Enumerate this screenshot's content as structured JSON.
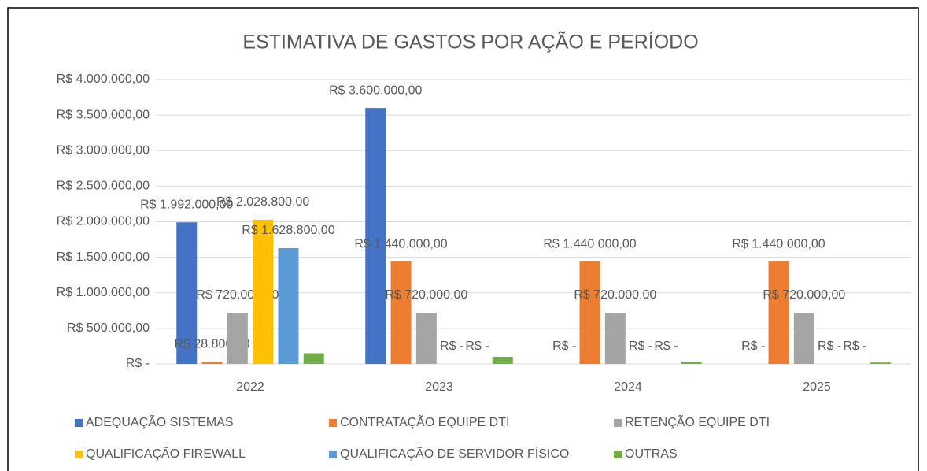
{
  "chart_data": {
    "type": "bar",
    "title": "ESTIMATIVA DE GASTOS POR AÇÃO E PERÍODO",
    "categories": [
      "2022",
      "2023",
      "2024",
      "2025"
    ],
    "series": [
      {
        "name": "ADEQUAÇÃO SISTEMAS",
        "color": "#4472c4",
        "values": [
          1992000,
          3600000,
          0,
          0
        ],
        "value_labels": [
          "R$ 1.992.000,00",
          "R$ 3.600.000,00",
          "R$ -",
          "R$ -"
        ]
      },
      {
        "name": "CONTRATAÇÃO EQUIPE DTI",
        "color": "#ed7d31",
        "values": [
          28800,
          1440000,
          1440000,
          1440000
        ],
        "value_labels": [
          "R$ 28.800,00",
          "R$ 1.440.000,00",
          "R$ 1.440.000,00",
          "R$ 1.440.000,00"
        ]
      },
      {
        "name": "RETENÇÃO EQUIPE DTI",
        "color": "#a5a5a5",
        "values": [
          720000,
          720000,
          720000,
          720000
        ],
        "value_labels": [
          "R$ 720.000,00",
          "R$ 720.000,00",
          "R$ 720.000,00",
          "R$ 720.000,00"
        ]
      },
      {
        "name": "QUALIFICAÇÃO FIREWALL",
        "color": "#ffc000",
        "values": [
          2028800,
          0,
          0,
          0
        ],
        "value_labels": [
          "R$ 2.028.800,00",
          "R$ -",
          "R$ -",
          "R$ -"
        ]
      },
      {
        "name": "QUALIFICAÇÃO DE SERVIDOR FÍSICO",
        "color": "#5b9bd5",
        "values": [
          1628800,
          0,
          0,
          0
        ],
        "value_labels": [
          "R$ 1.628.800,00",
          "R$ -",
          "R$ -",
          "R$ -"
        ]
      },
      {
        "name": "OUTRAS",
        "color": "#70ad47",
        "values": [
          150000,
          100000,
          30000,
          20000
        ]
      }
    ],
    "ylim": [
      0,
      4000000
    ],
    "yticks": [
      {
        "value": 0,
        "label": "R$ -"
      },
      {
        "value": 500000,
        "label": "R$ 500.000,00"
      },
      {
        "value": 1000000,
        "label": "R$ 1.000.000,00"
      },
      {
        "value": 1500000,
        "label": "R$ 1.500.000,00"
      },
      {
        "value": 2000000,
        "label": "R$ 2.000.000,00"
      },
      {
        "value": 2500000,
        "label": "R$ 2.500.000,00"
      },
      {
        "value": 3000000,
        "label": "R$ 3.000.000,00"
      },
      {
        "value": 3500000,
        "label": "R$ 3.500.000,00"
      },
      {
        "value": 4000000,
        "label": "R$ 4.000.000,00"
      }
    ],
    "grid": true,
    "legend": "bottom"
  }
}
